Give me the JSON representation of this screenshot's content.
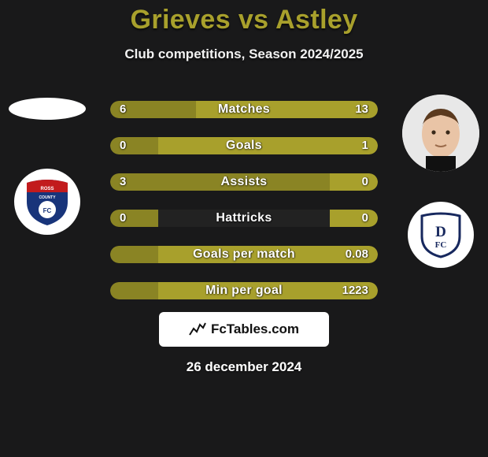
{
  "header": {
    "title": "Grieves vs Astley",
    "subtitle": "Club competitions, Season 2024/2025"
  },
  "branding": {
    "label": "FcTables.com"
  },
  "date_text": "26 december 2024",
  "colors": {
    "olive": "#a8a02c",
    "olive_dark": "#8a8424",
    "background": "#19191a"
  },
  "players": {
    "left": {
      "name": "Grieves",
      "club": "Ross County",
      "club_crest_colors": {
        "bg": "#ffffff",
        "main": "#18347a",
        "accent": "#c21b1d"
      }
    },
    "right": {
      "name": "Astley",
      "club": "Dundee",
      "club_crest_colors": {
        "bg": "#ffffff",
        "main": "#17285e"
      },
      "face_skin": "#e9c4a6"
    }
  },
  "rows": [
    {
      "label": "Matches",
      "left": "6",
      "right": "13",
      "left_pct": 32,
      "right_pct": 68
    },
    {
      "label": "Goals",
      "left": "0",
      "right": "1",
      "left_pct": 18,
      "right_pct": 82
    },
    {
      "label": "Assists",
      "left": "3",
      "right": "0",
      "left_pct": 82,
      "right_pct": 18
    },
    {
      "label": "Hattricks",
      "left": "0",
      "right": "0",
      "left_pct": 18,
      "right_pct": 18
    },
    {
      "label": "Goals per match",
      "left": "",
      "right": "0.08",
      "left_pct": 18,
      "right_pct": 82
    },
    {
      "label": "Min per goal",
      "left": "",
      "right": "1223",
      "left_pct": 18,
      "right_pct": 82
    }
  ]
}
